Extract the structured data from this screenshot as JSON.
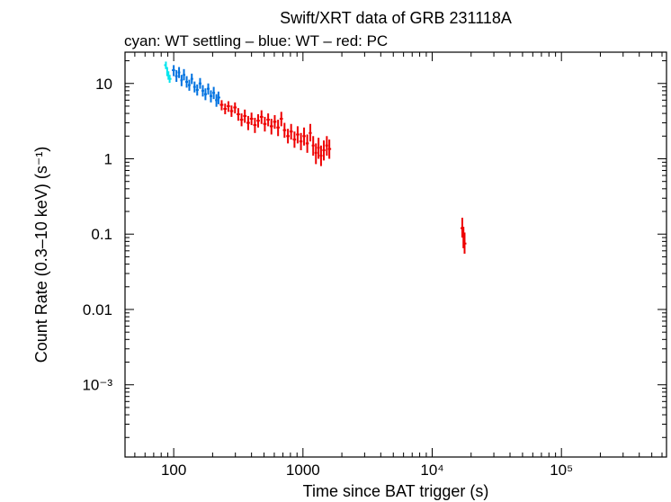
{
  "chart_data": {
    "type": "scatter",
    "title": "Swift/XRT data of GRB 231118A",
    "subtitle": "cyan: WT settling – blue: WT – red: PC",
    "xlabel": "Time since BAT trigger (s)",
    "ylabel": "Count Rate (0.3–10 keV) (s⁻¹)",
    "x_scale": "log",
    "y_scale": "log",
    "xlim": [
      42,
      650000
    ],
    "ylim": [
      0.00011,
      26
    ],
    "x_ticks": [
      {
        "value": 100,
        "label": "100"
      },
      {
        "value": 1000,
        "label": "1000"
      },
      {
        "value": 10000,
        "label": "10⁴"
      },
      {
        "value": 100000,
        "label": "10⁵"
      }
    ],
    "y_ticks": [
      {
        "value": 10,
        "label": "10"
      },
      {
        "value": 1,
        "label": "1"
      },
      {
        "value": 0.1,
        "label": "0.1"
      },
      {
        "value": 0.01,
        "label": "0.01"
      },
      {
        "value": 0.001,
        "label": "10⁻³"
      }
    ],
    "series": [
      {
        "name": "WT settling",
        "color": "#00e5ee",
        "points": [
          {
            "x": 87,
            "y": 17.5,
            "lo": 15.5,
            "hi": 19.5
          },
          {
            "x": 89,
            "y": 14.5,
            "lo": 12.5,
            "hi": 16.5
          },
          {
            "x": 91,
            "y": 12.8,
            "lo": 11.2,
            "hi": 14.5
          },
          {
            "x": 93,
            "y": 11.5,
            "lo": 10.2,
            "hi": 13.0
          }
        ]
      },
      {
        "name": "WT",
        "color": "#0072e0",
        "points": [
          {
            "x": 100,
            "y": 15.0,
            "lo": 12.5,
            "hi": 17.5
          },
          {
            "x": 105,
            "y": 12.5,
            "lo": 10.5,
            "hi": 15.0
          },
          {
            "x": 110,
            "y": 14.0,
            "lo": 11.8,
            "hi": 16.5
          },
          {
            "x": 115,
            "y": 11.0,
            "lo": 9.2,
            "hi": 13.0
          },
          {
            "x": 120,
            "y": 13.0,
            "lo": 11.0,
            "hi": 15.5
          },
          {
            "x": 126,
            "y": 10.5,
            "lo": 8.8,
            "hi": 12.5
          },
          {
            "x": 132,
            "y": 9.5,
            "lo": 8.0,
            "hi": 11.2
          },
          {
            "x": 138,
            "y": 11.5,
            "lo": 9.8,
            "hi": 13.5
          },
          {
            "x": 145,
            "y": 9.0,
            "lo": 7.6,
            "hi": 10.6
          },
          {
            "x": 152,
            "y": 8.2,
            "lo": 6.9,
            "hi": 9.7
          },
          {
            "x": 160,
            "y": 10.0,
            "lo": 8.5,
            "hi": 11.8
          },
          {
            "x": 168,
            "y": 8.0,
            "lo": 6.7,
            "hi": 9.5
          },
          {
            "x": 176,
            "y": 7.2,
            "lo": 6.0,
            "hi": 8.6
          },
          {
            "x": 185,
            "y": 8.5,
            "lo": 7.1,
            "hi": 10.0
          },
          {
            "x": 194,
            "y": 6.8,
            "lo": 5.6,
            "hi": 8.1
          },
          {
            "x": 204,
            "y": 7.5,
            "lo": 6.2,
            "hi": 9.0
          },
          {
            "x": 214,
            "y": 6.0,
            "lo": 4.9,
            "hi": 7.2
          },
          {
            "x": 222,
            "y": 6.5,
            "lo": 5.3,
            "hi": 7.8
          }
        ]
      },
      {
        "name": "PC",
        "color": "#ee0000",
        "points": [
          {
            "x": 235,
            "y": 5.2,
            "lo": 4.4,
            "hi": 6.0
          },
          {
            "x": 250,
            "y": 4.6,
            "lo": 3.9,
            "hi": 5.4
          },
          {
            "x": 265,
            "y": 5.0,
            "lo": 4.2,
            "hi": 5.8
          },
          {
            "x": 280,
            "y": 4.3,
            "lo": 3.6,
            "hi": 5.1
          },
          {
            "x": 298,
            "y": 4.8,
            "lo": 4.0,
            "hi": 5.6
          },
          {
            "x": 316,
            "y": 3.9,
            "lo": 3.2,
            "hi": 4.7
          },
          {
            "x": 335,
            "y": 3.3,
            "lo": 2.7,
            "hi": 4.0
          },
          {
            "x": 355,
            "y": 3.7,
            "lo": 3.0,
            "hi": 4.5
          },
          {
            "x": 377,
            "y": 3.0,
            "lo": 2.4,
            "hi": 3.7
          },
          {
            "x": 400,
            "y": 3.4,
            "lo": 2.8,
            "hi": 4.1
          },
          {
            "x": 425,
            "y": 2.8,
            "lo": 2.2,
            "hi": 3.5
          },
          {
            "x": 450,
            "y": 3.2,
            "lo": 2.6,
            "hi": 3.9
          },
          {
            "x": 478,
            "y": 3.6,
            "lo": 2.9,
            "hi": 4.4
          },
          {
            "x": 507,
            "y": 2.9,
            "lo": 2.3,
            "hi": 3.6
          },
          {
            "x": 538,
            "y": 3.3,
            "lo": 2.7,
            "hi": 4.0
          },
          {
            "x": 570,
            "y": 2.7,
            "lo": 2.1,
            "hi": 3.4
          },
          {
            "x": 605,
            "y": 3.1,
            "lo": 2.5,
            "hi": 3.8
          },
          {
            "x": 642,
            "y": 2.6,
            "lo": 2.0,
            "hi": 3.3
          },
          {
            "x": 680,
            "y": 3.4,
            "lo": 2.7,
            "hi": 4.2
          },
          {
            "x": 720,
            "y": 2.4,
            "lo": 1.9,
            "hi": 3.0
          },
          {
            "x": 765,
            "y": 2.0,
            "lo": 1.6,
            "hi": 2.5
          },
          {
            "x": 810,
            "y": 2.3,
            "lo": 1.8,
            "hi": 2.9
          },
          {
            "x": 860,
            "y": 1.8,
            "lo": 1.4,
            "hi": 2.3
          },
          {
            "x": 910,
            "y": 2.1,
            "lo": 1.6,
            "hi": 2.7
          },
          {
            "x": 965,
            "y": 1.7,
            "lo": 1.3,
            "hi": 2.2
          },
          {
            "x": 1020,
            "y": 2.0,
            "lo": 1.5,
            "hi": 2.6
          },
          {
            "x": 1080,
            "y": 1.6,
            "lo": 1.2,
            "hi": 2.1
          },
          {
            "x": 1140,
            "y": 2.2,
            "lo": 1.7,
            "hi": 2.9
          },
          {
            "x": 1200,
            "y": 1.5,
            "lo": 1.1,
            "hi": 2.0
          },
          {
            "x": 1260,
            "y": 1.2,
            "lo": 0.85,
            "hi": 1.6
          },
          {
            "x": 1320,
            "y": 1.4,
            "lo": 1.0,
            "hi": 1.9
          },
          {
            "x": 1380,
            "y": 1.1,
            "lo": 0.8,
            "hi": 1.5
          },
          {
            "x": 1450,
            "y": 1.3,
            "lo": 0.95,
            "hi": 1.75
          },
          {
            "x": 1530,
            "y": 1.5,
            "lo": 1.1,
            "hi": 2.0
          },
          {
            "x": 1600,
            "y": 1.35,
            "lo": 1.0,
            "hi": 1.8
          },
          {
            "x": 17100,
            "y": 0.12,
            "lo": 0.09,
            "hi": 0.165
          },
          {
            "x": 17450,
            "y": 0.09,
            "lo": 0.065,
            "hi": 0.125
          },
          {
            "x": 17800,
            "y": 0.075,
            "lo": 0.055,
            "hi": 0.105
          }
        ]
      }
    ]
  }
}
